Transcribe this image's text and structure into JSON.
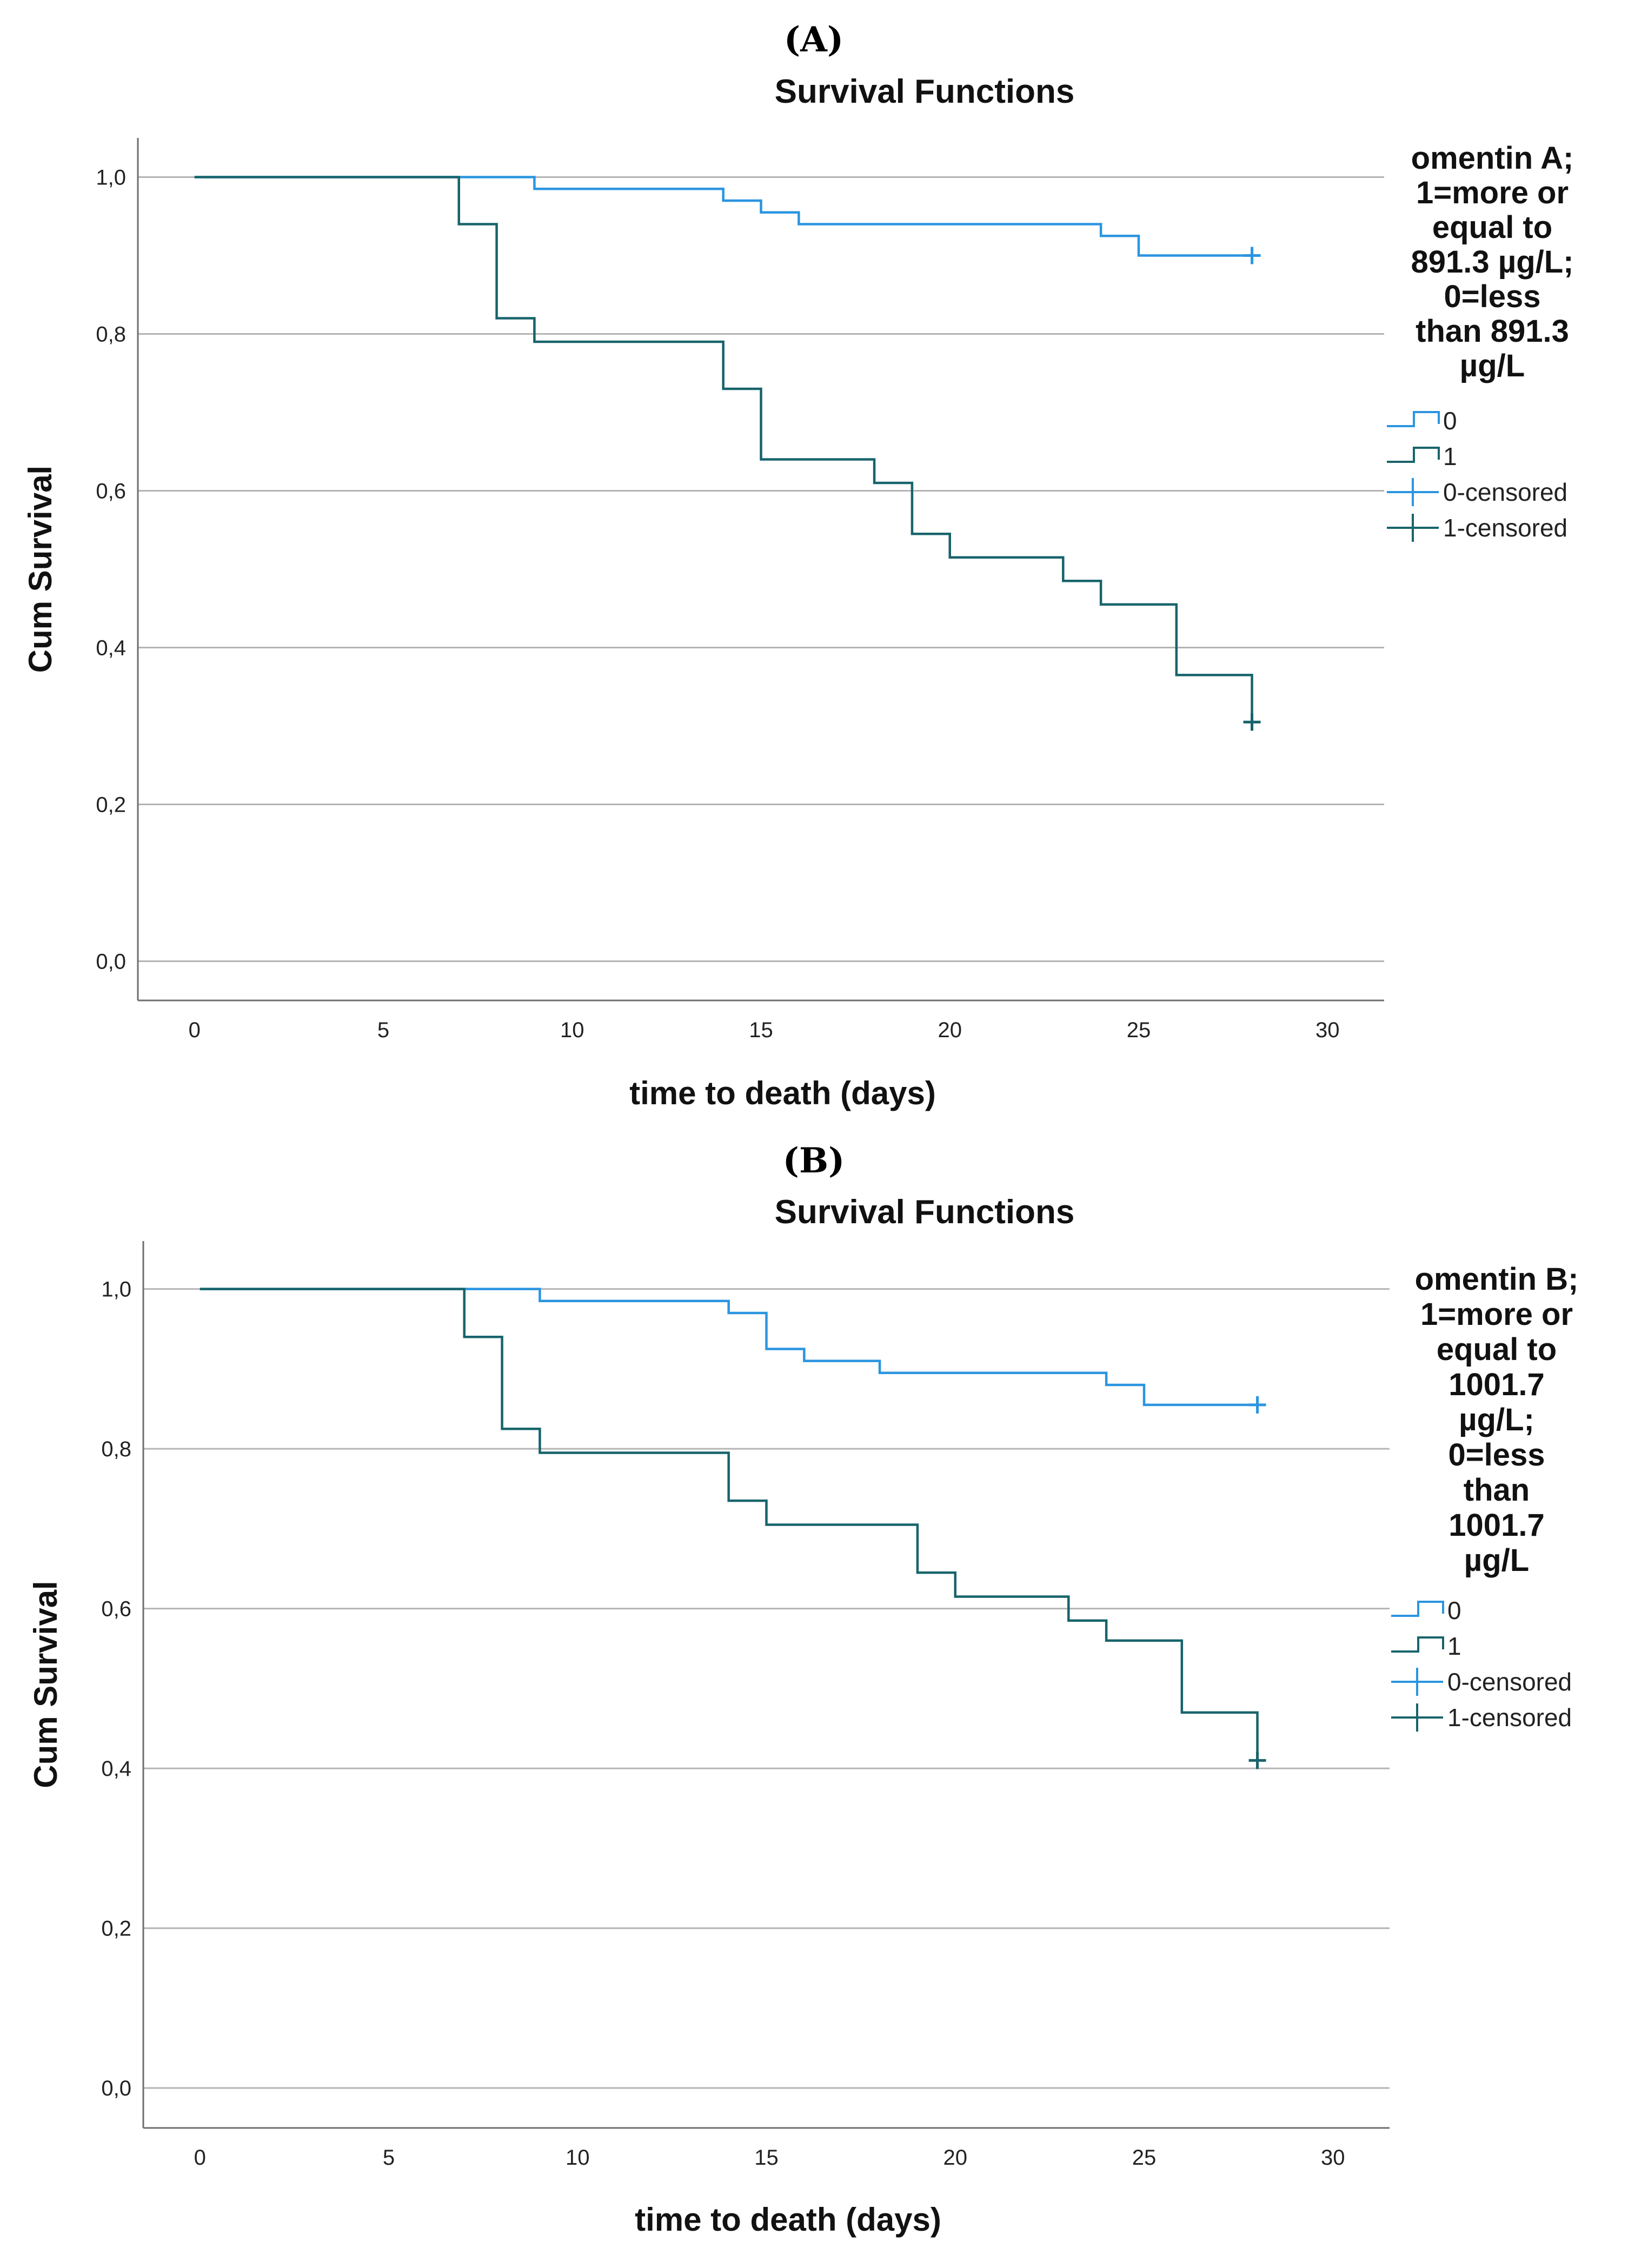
{
  "figure": {
    "panels": [
      "(A)",
      "(B)"
    ]
  },
  "colors": {
    "group0": "#2b95e0",
    "group1": "#18646b",
    "grid": "#b4b4b4",
    "axis": "#6e6e6e"
  },
  "chart_data": [
    {
      "type": "line",
      "panel_label": "(A)",
      "title": "Survival Functions",
      "xlabel": "time to death (days)",
      "ylabel": "Cum Survival",
      "xlim": [
        -1.5,
        31.5
      ],
      "ylim": [
        -0.05,
        1.05
      ],
      "xticks": [
        0,
        5,
        10,
        15,
        20,
        25,
        30
      ],
      "xtick_labels": [
        "0",
        "5",
        "10",
        "15",
        "20",
        "25",
        "30"
      ],
      "yticks": [
        0.0,
        0.2,
        0.4,
        0.6,
        0.8,
        1.0
      ],
      "ytick_labels": [
        "0,0",
        "0,2",
        "0,4",
        "0,6",
        "0,8",
        "1,0"
      ],
      "grid": "horizontal",
      "legend": {
        "title_lines": [
          "omentin A;",
          "1=more or",
          "equal to",
          "891.3 µg/L;",
          "0=less",
          "than 891.3",
          "µg/L"
        ],
        "entries": [
          "0",
          "1",
          "0-censored",
          "1-censored"
        ],
        "placement": "right"
      },
      "series": [
        {
          "name": "0",
          "steps": [
            [
              0,
              1.0
            ],
            [
              9,
              0.985
            ],
            [
              14,
              0.97
            ],
            [
              15,
              0.955
            ],
            [
              16,
              0.94
            ],
            [
              24,
              0.925
            ],
            [
              25,
              0.9
            ],
            [
              28,
              0.9
            ]
          ],
          "censored": [
            [
              28,
              0.9
            ]
          ]
        },
        {
          "name": "1",
          "steps": [
            [
              0,
              1.0
            ],
            [
              7,
              0.94
            ],
            [
              8,
              0.82
            ],
            [
              9,
              0.79
            ],
            [
              14,
              0.73
            ],
            [
              15,
              0.64
            ],
            [
              18,
              0.61
            ],
            [
              19,
              0.545
            ],
            [
              20,
              0.515
            ],
            [
              23,
              0.485
            ],
            [
              24,
              0.455
            ],
            [
              26,
              0.365
            ],
            [
              28,
              0.3
            ]
          ],
          "censored": [
            [
              28,
              0.305
            ]
          ]
        }
      ]
    },
    {
      "type": "line",
      "panel_label": "(B)",
      "title": "Survival Functions",
      "xlabel": "time to death (days)",
      "ylabel": "Cum Survival",
      "xlim": [
        -1.5,
        31.5
      ],
      "ylim": [
        -0.05,
        1.06
      ],
      "xticks": [
        0,
        5,
        10,
        15,
        20,
        25,
        30
      ],
      "xtick_labels": [
        "0",
        "5",
        "10",
        "15",
        "20",
        "25",
        "30"
      ],
      "yticks": [
        0.0,
        0.2,
        0.4,
        0.6,
        0.8,
        1.0
      ],
      "ytick_labels": [
        "0,0",
        "0,2",
        "0,4",
        "0,6",
        "0,8",
        "1,0"
      ],
      "grid": "horizontal",
      "legend": {
        "title_lines": [
          "omentin B;",
          "1=more or",
          "equal to",
          "1001.7",
          "µg/L;",
          "0=less",
          "than",
          "1001.7",
          "µg/L"
        ],
        "entries": [
          "0",
          "1",
          "0-censored",
          "1-censored"
        ],
        "placement": "right"
      },
      "series": [
        {
          "name": "0",
          "steps": [
            [
              0,
              1.0
            ],
            [
              9,
              0.985
            ],
            [
              14,
              0.97
            ],
            [
              15,
              0.925
            ],
            [
              16,
              0.91
            ],
            [
              18,
              0.895
            ],
            [
              24,
              0.88
            ],
            [
              25,
              0.855
            ],
            [
              28,
              0.855
            ]
          ],
          "censored": [
            [
              28,
              0.855
            ]
          ]
        },
        {
          "name": "1",
          "steps": [
            [
              0,
              1.0
            ],
            [
              7,
              0.94
            ],
            [
              8,
              0.825
            ],
            [
              9,
              0.795
            ],
            [
              14,
              0.735
            ],
            [
              15,
              0.705
            ],
            [
              19,
              0.645
            ],
            [
              20,
              0.615
            ],
            [
              23,
              0.585
            ],
            [
              24,
              0.56
            ],
            [
              26,
              0.47
            ],
            [
              28,
              0.41
            ]
          ],
          "censored": [
            [
              28,
              0.41
            ]
          ]
        }
      ]
    }
  ]
}
